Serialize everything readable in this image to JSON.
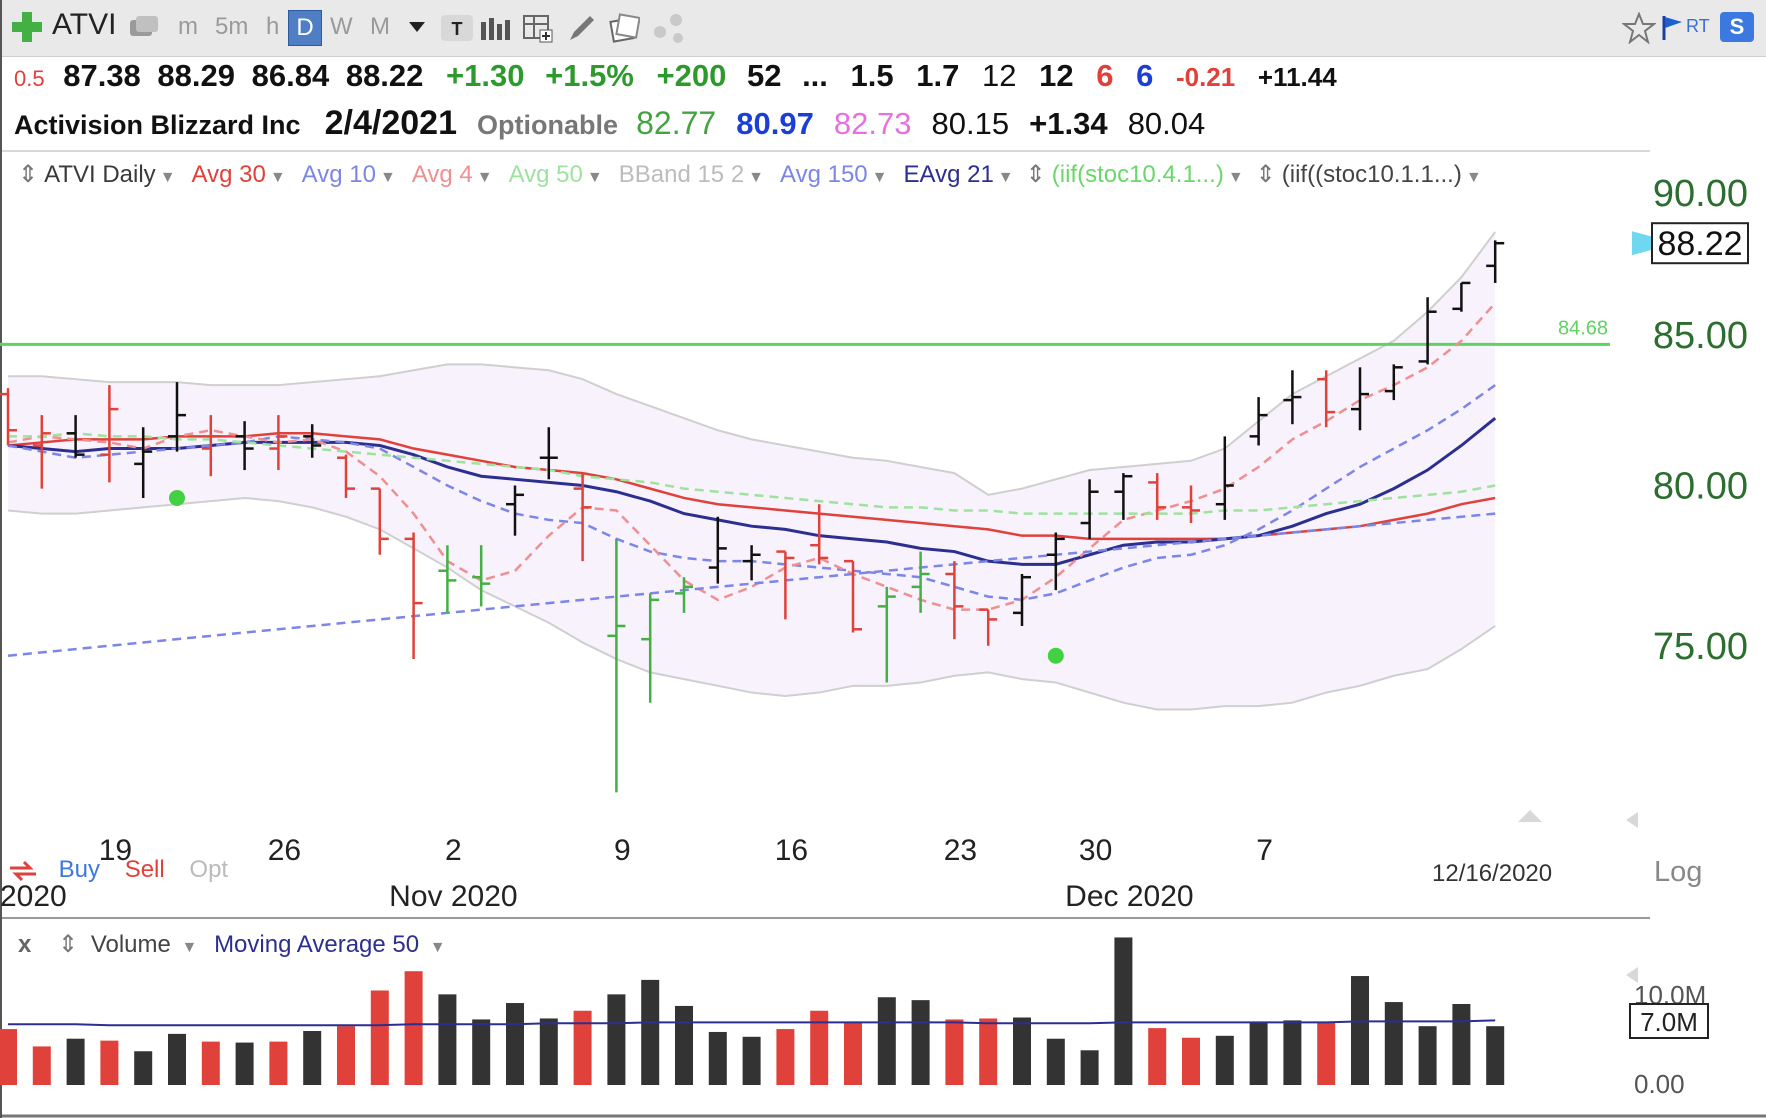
{
  "toolbar": {
    "symbol": "ATVI",
    "intervals": [
      "m",
      "5m",
      "h",
      "D",
      "W",
      "M"
    ],
    "active_interval": "D",
    "rt_label": "RT",
    "s_label": "S"
  },
  "quote_line1": {
    "change_pct_small": "0.5",
    "open": "87.38",
    "high": "88.29",
    "low": "86.84",
    "close": "88.22",
    "change": "+1.30",
    "change_pct": "+1.5%",
    "vol_change": "+200",
    "v52": "52",
    "ellipsis": "...",
    "a": "1.5",
    "b": "1.7",
    "c": "12",
    "d": "12",
    "e": "6",
    "f": "6",
    "g": "-0.21",
    "h": "+11.44"
  },
  "quote_line2": {
    "name": "Activision Blizzard Inc",
    "date": "2/4/2021",
    "optionable": "Optionable",
    "v1": "82.77",
    "v2": "80.97",
    "v3": "82.73",
    "v4": "80.15",
    "v5": "+1.34",
    "v6": "80.04"
  },
  "legend": {
    "items": [
      "ATVI Daily",
      "Avg 30",
      "Avg 10",
      "Avg 4",
      "Avg 50",
      "BBand 15 2",
      "Avg 150",
      "EAvg 21",
      "(iif(stoc10.4.1...)",
      "(iif((stoc10.1.1...)"
    ],
    "colors": [
      "#3a3a3a",
      "#e0413a",
      "#7b86e8",
      "#ef8f8f",
      "#9de39d",
      "#bcbcbc",
      "#7b86e8",
      "#2c2f8f",
      "#68d868",
      "#444444"
    ]
  },
  "buy_sell": {
    "buy": "Buy",
    "sell": "Sell",
    "opt": "Opt"
  },
  "current_price_label": "88.22",
  "line_label": "84.68",
  "axis_controls": {
    "log": "Log",
    "date_label": "12/16/2020"
  },
  "volume_legend": {
    "x": "x",
    "volume": "Volume",
    "ma": "Moving Average 50"
  },
  "colors": {
    "up": "#111111",
    "down": "#e0413a",
    "green": "#43b043",
    "hline": "#5fd35f",
    "ma10": "#2c2f8f"
  },
  "chart_data": {
    "type": "ohlc",
    "title": "ATVI Daily",
    "y_scale": "log",
    "ylim": [
      70.2,
      91.5
    ],
    "y_ticks": [
      75,
      80,
      85,
      90
    ],
    "y_tick_labels": [
      "75.00",
      "80.00",
      "85.00",
      "90.00"
    ],
    "x_tick_labels": [
      "19",
      "26",
      "2",
      "9",
      "16",
      "23",
      "30",
      "7"
    ],
    "x_tick_index": [
      3,
      8,
      13,
      18,
      23,
      28,
      32,
      37
    ],
    "month_labels": [
      "2020",
      "Nov 2020",
      "Dec 2020"
    ],
    "month_label_index": [
      1,
      13,
      33
    ],
    "horizontal_line": 84.68,
    "bars": [
      {
        "o": 83.0,
        "h": 83.2,
        "l": 81.3,
        "c": 81.8,
        "color": "down"
      },
      {
        "o": 81.3,
        "h": 82.3,
        "l": 79.9,
        "c": 81.7,
        "color": "down"
      },
      {
        "o": 81.7,
        "h": 82.3,
        "l": 80.9,
        "c": 81.0,
        "color": "up"
      },
      {
        "o": 81.0,
        "h": 83.3,
        "l": 80.1,
        "c": 82.5,
        "color": "down"
      },
      {
        "o": 80.7,
        "h": 81.9,
        "l": 79.6,
        "c": 81.1,
        "color": "up"
      },
      {
        "o": 81.6,
        "h": 83.4,
        "l": 81.1,
        "c": 82.3,
        "color": "up"
      },
      {
        "o": 81.2,
        "h": 82.3,
        "l": 80.3,
        "c": 81.6,
        "color": "down"
      },
      {
        "o": 81.6,
        "h": 82.1,
        "l": 80.5,
        "c": 81.2,
        "color": "up"
      },
      {
        "o": 81.2,
        "h": 82.3,
        "l": 80.5,
        "c": 81.6,
        "color": "down"
      },
      {
        "o": 81.6,
        "h": 82.0,
        "l": 80.9,
        "c": 81.3,
        "color": "up"
      },
      {
        "o": 80.9,
        "h": 81.0,
        "l": 79.6,
        "c": 79.9,
        "color": "down"
      },
      {
        "o": 79.9,
        "h": 79.9,
        "l": 77.8,
        "c": 78.3,
        "color": "down"
      },
      {
        "o": 78.3,
        "h": 78.5,
        "l": 74.6,
        "c": 76.3,
        "color": "down"
      },
      {
        "o": 77.3,
        "h": 78.1,
        "l": 76.0,
        "c": 77.0,
        "color": "green"
      },
      {
        "o": 77.1,
        "h": 78.1,
        "l": 76.2,
        "c": 76.9,
        "color": "green"
      },
      {
        "o": 79.4,
        "h": 80.0,
        "l": 78.4,
        "c": 79.7,
        "color": "up"
      },
      {
        "o": 80.9,
        "h": 81.9,
        "l": 80.2,
        "c": 80.9,
        "color": "up"
      },
      {
        "o": 79.9,
        "h": 80.4,
        "l": 77.6,
        "c": 79.3,
        "color": "down"
      },
      {
        "o": 75.3,
        "h": 78.3,
        "l": 70.7,
        "c": 75.6,
        "color": "green"
      },
      {
        "o": 75.2,
        "h": 76.6,
        "l": 73.3,
        "c": 76.4,
        "color": "green"
      },
      {
        "o": 76.6,
        "h": 77.1,
        "l": 76.0,
        "c": 76.8,
        "color": "green"
      },
      {
        "o": 77.4,
        "h": 79.0,
        "l": 76.9,
        "c": 78.0,
        "color": "up"
      },
      {
        "o": 77.6,
        "h": 78.1,
        "l": 77.0,
        "c": 77.8,
        "color": "up"
      },
      {
        "o": 77.9,
        "h": 77.9,
        "l": 75.8,
        "c": 77.7,
        "color": "down"
      },
      {
        "o": 78.1,
        "h": 79.4,
        "l": 77.5,
        "c": 77.7,
        "color": "down"
      },
      {
        "o": 77.6,
        "h": 77.6,
        "l": 75.4,
        "c": 75.5,
        "color": "down"
      },
      {
        "o": 76.2,
        "h": 76.8,
        "l": 73.9,
        "c": 76.5,
        "color": "green"
      },
      {
        "o": 76.8,
        "h": 77.9,
        "l": 76.0,
        "c": 77.2,
        "color": "green"
      },
      {
        "o": 77.2,
        "h": 77.6,
        "l": 75.2,
        "c": 76.2,
        "color": "down"
      },
      {
        "o": 76.1,
        "h": 76.1,
        "l": 75.0,
        "c": 75.8,
        "color": "down"
      },
      {
        "o": 76.0,
        "h": 77.2,
        "l": 75.6,
        "c": 77.1,
        "color": "up"
      },
      {
        "o": 77.8,
        "h": 78.5,
        "l": 76.7,
        "c": 78.3,
        "color": "up"
      },
      {
        "o": 78.8,
        "h": 80.2,
        "l": 78.3,
        "c": 79.8,
        "color": "up"
      },
      {
        "o": 79.8,
        "h": 80.4,
        "l": 78.9,
        "c": 80.3,
        "color": "up"
      },
      {
        "o": 80.1,
        "h": 80.4,
        "l": 78.9,
        "c": 79.3,
        "color": "down"
      },
      {
        "o": 79.3,
        "h": 80.0,
        "l": 78.8,
        "c": 79.2,
        "color": "down"
      },
      {
        "o": 79.4,
        "h": 81.6,
        "l": 78.9,
        "c": 80.0,
        "color": "up"
      },
      {
        "o": 81.6,
        "h": 82.9,
        "l": 81.3,
        "c": 82.3,
        "color": "up"
      },
      {
        "o": 82.8,
        "h": 83.8,
        "l": 82.0,
        "c": 82.9,
        "color": "up"
      },
      {
        "o": 83.5,
        "h": 83.8,
        "l": 81.9,
        "c": 82.4,
        "color": "down"
      },
      {
        "o": 82.5,
        "h": 83.9,
        "l": 81.8,
        "c": 83.0,
        "color": "up"
      },
      {
        "o": 83.1,
        "h": 84.0,
        "l": 82.8,
        "c": 83.9,
        "color": "up"
      },
      {
        "o": 84.1,
        "h": 86.3,
        "l": 84.0,
        "c": 85.8,
        "color": "up"
      },
      {
        "o": 85.9,
        "h": 86.8,
        "l": 85.8,
        "c": 86.8,
        "color": "up"
      },
      {
        "o": 87.4,
        "h": 88.3,
        "l": 86.8,
        "c": 88.2,
        "color": "up"
      }
    ],
    "moving_averages": [
      {
        "name": "Avg 30",
        "color": "#e0413a",
        "dash": false,
        "values": [
          81.3,
          81.4,
          81.5,
          81.5,
          81.5,
          81.6,
          81.6,
          81.6,
          81.7,
          81.7,
          81.6,
          81.5,
          81.2,
          81.0,
          80.8,
          80.6,
          80.5,
          80.4,
          80.2,
          79.9,
          79.6,
          79.4,
          79.3,
          79.2,
          79.1,
          79.0,
          78.9,
          78.8,
          78.7,
          78.6,
          78.4,
          78.4,
          78.3,
          78.3,
          78.3,
          78.3,
          78.3,
          78.4,
          78.5,
          78.6,
          78.7,
          78.9,
          79.1,
          79.4,
          79.6
        ]
      },
      {
        "name": "EAvg 21",
        "color": "#2c2f8f",
        "dash": false,
        "values": [
          81.3,
          81.2,
          81.1,
          81.2,
          81.2,
          81.2,
          81.3,
          81.4,
          81.4,
          81.4,
          81.4,
          81.3,
          81.0,
          80.6,
          80.3,
          80.2,
          80.1,
          80.0,
          79.8,
          79.5,
          79.1,
          78.9,
          78.7,
          78.6,
          78.4,
          78.3,
          78.2,
          78.0,
          77.9,
          77.6,
          77.5,
          77.5,
          77.8,
          78.1,
          78.2,
          78.2,
          78.3,
          78.4,
          78.7,
          79.1,
          79.4,
          79.9,
          80.5,
          81.3,
          82.2
        ]
      },
      {
        "name": "Avg 10",
        "color": "#7b86e8",
        "dash": true,
        "values": [
          81.3,
          81.1,
          80.9,
          81.0,
          81.1,
          81.2,
          81.3,
          81.4,
          81.6,
          81.5,
          81.4,
          81.2,
          80.6,
          80.0,
          79.5,
          79.1,
          78.9,
          78.8,
          78.3,
          77.9,
          77.7,
          77.6,
          77.6,
          77.5,
          77.4,
          77.3,
          77.2,
          77.1,
          76.8,
          76.5,
          76.4,
          76.6,
          77.0,
          77.4,
          77.7,
          77.8,
          78.1,
          78.6,
          79.2,
          79.9,
          80.6,
          81.2,
          81.8,
          82.5,
          83.3
        ]
      },
      {
        "name": "Avg 4",
        "color": "#ef8f8f",
        "dash": true,
        "values": [
          81.4,
          81.6,
          81.5,
          81.4,
          81.2,
          81.6,
          81.8,
          81.6,
          81.4,
          81.5,
          81.1,
          80.3,
          79.1,
          77.6,
          77.0,
          77.3,
          78.4,
          79.3,
          79.2,
          78.1,
          77.0,
          76.4,
          76.8,
          77.4,
          77.7,
          77.2,
          76.8,
          76.4,
          76.1,
          76.1,
          76.4,
          77.1,
          78.0,
          78.9,
          79.2,
          79.5,
          79.9,
          80.6,
          81.5,
          82.1,
          82.8,
          83.3,
          83.9,
          84.8,
          86.1
        ]
      },
      {
        "name": "Avg 50",
        "color": "#9de39d",
        "dash": true,
        "values": [
          81.6,
          81.6,
          81.7,
          81.6,
          81.6,
          81.5,
          81.5,
          81.4,
          81.3,
          81.2,
          81.1,
          81.0,
          80.9,
          80.8,
          80.7,
          80.6,
          80.5,
          80.3,
          80.2,
          80.1,
          79.9,
          79.8,
          79.7,
          79.6,
          79.5,
          79.4,
          79.3,
          79.3,
          79.2,
          79.2,
          79.1,
          79.1,
          79.1,
          79.1,
          79.1,
          79.1,
          79.2,
          79.2,
          79.3,
          79.4,
          79.5,
          79.6,
          79.7,
          79.8,
          80.0
        ]
      },
      {
        "name": "Avg 150",
        "color": "#7b86e8",
        "dash": true,
        "values": [
          74.7,
          74.8,
          74.9,
          75.0,
          75.1,
          75.2,
          75.3,
          75.4,
          75.5,
          75.6,
          75.7,
          75.8,
          75.9,
          76.0,
          76.1,
          76.2,
          76.3,
          76.4,
          76.5,
          76.6,
          76.7,
          76.8,
          76.9,
          77.0,
          77.1,
          77.2,
          77.3,
          77.4,
          77.5,
          77.6,
          77.7,
          77.8,
          77.9,
          78.0,
          78.1,
          78.2,
          78.3,
          78.4,
          78.5,
          78.6,
          78.7,
          78.8,
          78.9,
          79.0,
          79.1
        ]
      }
    ],
    "bband_upper": [
      83.6,
      83.6,
      83.5,
      83.4,
      83.4,
      83.4,
      83.3,
      83.3,
      83.3,
      83.4,
      83.5,
      83.6,
      83.8,
      84.0,
      84.0,
      83.9,
      83.8,
      83.5,
      83.0,
      82.6,
      82.2,
      81.8,
      81.5,
      81.3,
      81.1,
      80.9,
      80.8,
      80.6,
      80.4,
      79.7,
      79.9,
      80.2,
      80.5,
      80.6,
      80.7,
      80.8,
      81.2,
      82.1,
      83.0,
      83.6,
      84.2,
      84.8,
      85.8,
      87.0,
      88.6
    ],
    "bband_lower": [
      79.2,
      79.1,
      79.1,
      79.2,
      79.3,
      79.4,
      79.5,
      79.6,
      79.5,
      79.3,
      79.0,
      78.6,
      78.0,
      77.4,
      76.7,
      76.2,
      75.7,
      75.1,
      74.6,
      74.2,
      74.0,
      73.8,
      73.6,
      73.5,
      73.6,
      73.8,
      73.8,
      73.9,
      74.1,
      74.2,
      74.0,
      73.9,
      73.6,
      73.3,
      73.1,
      73.1,
      73.2,
      73.2,
      73.3,
      73.6,
      73.8,
      74.1,
      74.3,
      74.9,
      75.6
    ],
    "signal_dots": [
      {
        "index": 5,
        "value": 79.6
      },
      {
        "index": 31,
        "value": 74.7
      }
    ],
    "volume": {
      "ylim": [
        0,
        14
      ],
      "y_tick_labels": [
        "0.00",
        "7.0M",
        "10.0M"
      ],
      "unit": "M",
      "values": [
        5.8,
        4.0,
        4.8,
        4.6,
        3.5,
        5.3,
        4.5,
        4.4,
        4.5,
        5.6,
        6.1,
        9.8,
        11.8,
        9.4,
        6.8,
        8.5,
        6.9,
        7.7,
        9.4,
        10.9,
        8.2,
        5.5,
        5.0,
        5.8,
        7.7,
        6.5,
        9.1,
        8.8,
        6.8,
        6.9,
        7.0,
        4.8,
        3.6,
        15.3,
        5.9,
        4.9,
        5.1,
        6.5,
        6.7,
        6.5,
        11.3,
        8.6,
        6.1,
        8.4,
        6.1
      ],
      "ma50": [
        6.3,
        6.3,
        6.3,
        6.2,
        6.2,
        6.2,
        6.2,
        6.2,
        6.2,
        6.2,
        6.2,
        6.2,
        6.3,
        6.3,
        6.3,
        6.3,
        6.4,
        6.4,
        6.4,
        6.5,
        6.5,
        6.5,
        6.5,
        6.5,
        6.5,
        6.5,
        6.5,
        6.5,
        6.5,
        6.4,
        6.4,
        6.4,
        6.4,
        6.5,
        6.5,
        6.5,
        6.5,
        6.5,
        6.5,
        6.5,
        6.6,
        6.6,
        6.6,
        6.6,
        6.7
      ]
    }
  }
}
